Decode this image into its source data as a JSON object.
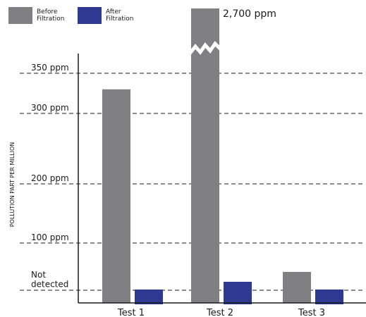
{
  "chart_data": {
    "type": "bar",
    "categories": [
      "Test 1",
      "Test 2",
      "Test 3"
    ],
    "series": [
      {
        "name": "Before\nFiltration",
        "color": "#808082",
        "values": [
          330,
          2700,
          28
        ]
      },
      {
        "name": "After\nFiltration",
        "color": "#2e3a92",
        "values": [
          0,
          10,
          0
        ]
      }
    ],
    "ylabel": "POLLUTION PART PER MILLION",
    "yticks": [
      {
        "value": 0,
        "label": "Not\ndetected"
      },
      {
        "value": 100,
        "label": "100 ppm"
      },
      {
        "value": 200,
        "label": "200 ppm"
      },
      {
        "value": 300,
        "label": "300 ppm"
      },
      {
        "value": 350,
        "label": "350 ppm"
      }
    ],
    "ylim": [
      0,
      350
    ],
    "axis_break": "true",
    "annotation": "2,700 ppm",
    "grid": "dashed horizontal at ticks",
    "legend_position": "top-left"
  }
}
